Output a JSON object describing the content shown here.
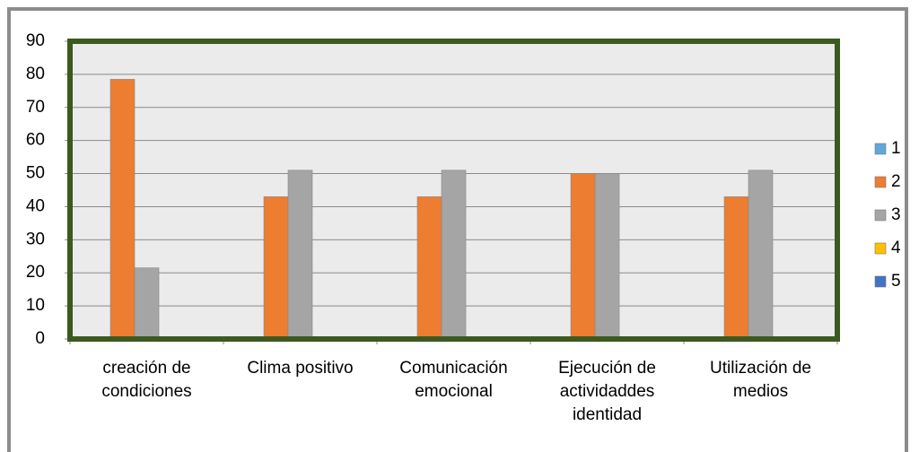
{
  "chart_data": {
    "type": "bar",
    "categories": [
      "creación de condiciones",
      "Clima positivo",
      "Comunicación emocional",
      "Ejecución de actividaddes identidad",
      "Utilización de medios"
    ],
    "series": [
      {
        "name": "1",
        "color": "#5fa8dc",
        "values": [
          0,
          0,
          0,
          0,
          0
        ]
      },
      {
        "name": "2",
        "color": "#ed7d31",
        "values": [
          78.5,
          43,
          43,
          50,
          43
        ]
      },
      {
        "name": "3",
        "color": "#a5a5a5",
        "values": [
          21.5,
          51,
          51,
          50,
          51
        ]
      },
      {
        "name": "4",
        "color": "#ffc000",
        "values": [
          0,
          0,
          0,
          0,
          0
        ]
      },
      {
        "name": "5",
        "color": "#4472c4",
        "values": [
          0,
          0,
          0,
          0,
          0
        ]
      }
    ],
    "ylim": [
      0,
      90
    ],
    "yticks": [
      0,
      10,
      20,
      30,
      40,
      50,
      60,
      70,
      80,
      90
    ],
    "grid": true,
    "legend": "right"
  }
}
